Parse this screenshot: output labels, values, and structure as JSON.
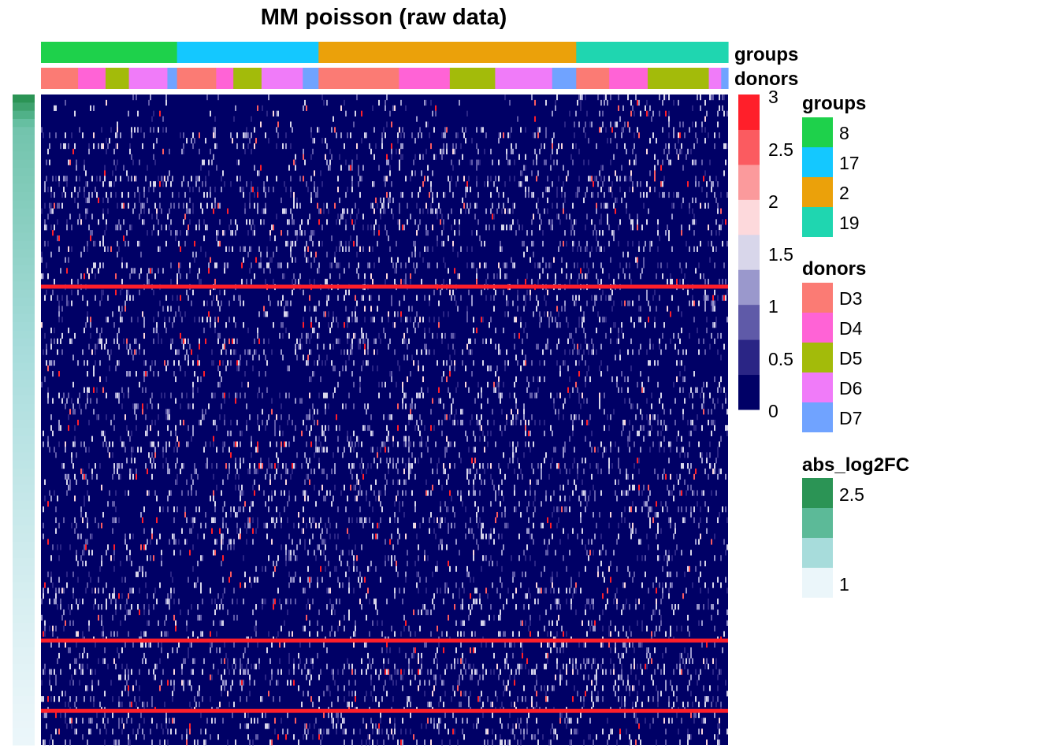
{
  "chart_data": {
    "type": "heatmap",
    "title": "MM poisson (raw data)",
    "color_scale": {
      "breaks": [
        0,
        0.5,
        1,
        1.5,
        2,
        2.5,
        3
      ],
      "tick_labels": [
        "3",
        "2.5",
        "2",
        "1.5",
        "1",
        "0.5",
        "0"
      ],
      "colors": [
        "#000066",
        "#2a2585",
        "#5f5aa8",
        "#9a98cc",
        "#d8d6ea",
        "#fdd9dc",
        "#fb9a9c",
        "#fb5b60",
        "#ff1f2a"
      ]
    },
    "column_annotations": [
      {
        "label": "groups",
        "segments": [
          {
            "value": "8",
            "fraction": 0.198
          },
          {
            "value": "17",
            "fraction": 0.206
          },
          {
            "value": "2",
            "fraction": 0.375
          },
          {
            "value": "19",
            "fraction": 0.221
          }
        ]
      },
      {
        "label": "donors",
        "segments": [
          {
            "value": "D3",
            "fraction": 0.054
          },
          {
            "value": "D4",
            "fraction": 0.04
          },
          {
            "value": "D5",
            "fraction": 0.034
          },
          {
            "value": "D6",
            "fraction": 0.056
          },
          {
            "value": "D7",
            "fraction": 0.014
          },
          {
            "value": "D3",
            "fraction": 0.057
          },
          {
            "value": "D4",
            "fraction": 0.025
          },
          {
            "value": "D5",
            "fraction": 0.041
          },
          {
            "value": "D6",
            "fraction": 0.06
          },
          {
            "value": "D7",
            "fraction": 0.023
          },
          {
            "value": "D3",
            "fraction": 0.117
          },
          {
            "value": "D4",
            "fraction": 0.074
          },
          {
            "value": "D5",
            "fraction": 0.066
          },
          {
            "value": "D6",
            "fraction": 0.083
          },
          {
            "value": "D7",
            "fraction": 0.035
          },
          {
            "value": "D3",
            "fraction": 0.048
          },
          {
            "value": "D4",
            "fraction": 0.056
          },
          {
            "value": "D5",
            "fraction": 0.089
          },
          {
            "value": "D6",
            "fraction": 0.018
          },
          {
            "value": "D7",
            "fraction": 0.01
          }
        ]
      }
    ],
    "row_annotation": {
      "label": "abs_log2FC",
      "range": [
        1,
        2.6
      ],
      "ticks": [
        "2.5",
        "1"
      ]
    },
    "strong_rows": [
      0.296,
      0.84,
      0.948
    ]
  },
  "legends": {
    "groups": {
      "title": "groups",
      "items": [
        {
          "label": "8",
          "color": "#1ed14b"
        },
        {
          "label": "17",
          "color": "#14c8ff"
        },
        {
          "label": "2",
          "color": "#eba10a"
        },
        {
          "label": "19",
          "color": "#1fd6b0"
        }
      ]
    },
    "donors": {
      "title": "donors",
      "items": [
        {
          "label": "D3",
          "color": "#fb7b74"
        },
        {
          "label": "D4",
          "color": "#ff63d6"
        },
        {
          "label": "D5",
          "color": "#a3bb0a"
        },
        {
          "label": "D6",
          "color": "#f07bf9"
        },
        {
          "label": "D7",
          "color": "#70a3ff"
        }
      ]
    },
    "abs_log2FC": {
      "title": "abs_log2FC",
      "colors": [
        "#2b9455",
        "#5cba98",
        "#a7dcdb",
        "#ebf6fa"
      ],
      "ticks": [
        "2.5",
        "1"
      ]
    }
  }
}
